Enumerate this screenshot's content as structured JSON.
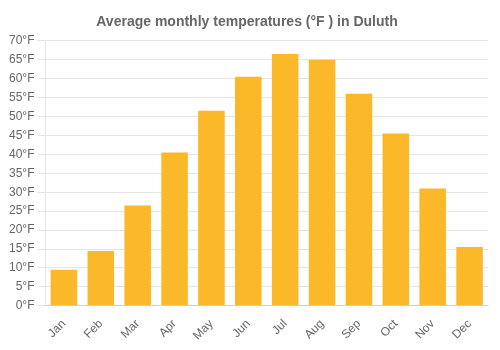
{
  "chart_data": {
    "type": "bar",
    "title": "Average monthly temperatures (°F ) in Duluth",
    "categories": [
      "Jan",
      "Feb",
      "Mar",
      "Apr",
      "May",
      "Jun",
      "Jul",
      "Aug",
      "Sep",
      "Oct",
      "Nov",
      "Dec"
    ],
    "values": [
      9.5,
      14.5,
      26.5,
      40.5,
      51.5,
      60.5,
      66.5,
      65.0,
      56.0,
      45.5,
      31.0,
      15.5
    ],
    "color": "#FBB829",
    "ylim": [
      0,
      70
    ],
    "yticks": [
      {
        "value": 0,
        "label": "0°F"
      },
      {
        "value": 5,
        "label": "5°F"
      },
      {
        "value": 10,
        "label": "10°F"
      },
      {
        "value": 15,
        "label": "15°F"
      },
      {
        "value": 20,
        "label": "20°F"
      },
      {
        "value": 25,
        "label": "25°F"
      },
      {
        "value": 30,
        "label": "30°F"
      },
      {
        "value": 35,
        "label": "35°F"
      },
      {
        "value": 40,
        "label": "40°F"
      },
      {
        "value": 45,
        "label": "45°F"
      },
      {
        "value": 50,
        "label": "50°F"
      },
      {
        "value": 55,
        "label": "55°F"
      },
      {
        "value": 60,
        "label": "60°F"
      },
      {
        "value": 65,
        "label": "65°F"
      },
      {
        "value": 70,
        "label": "70°F"
      }
    ],
    "grid": true
  }
}
